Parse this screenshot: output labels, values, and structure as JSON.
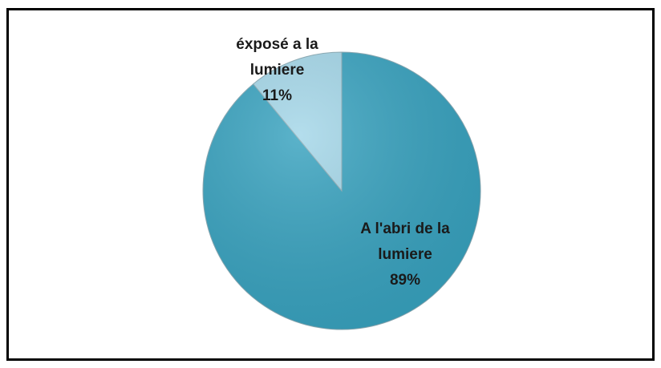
{
  "chart_data": {
    "type": "pie",
    "categories": [
      "A l'abri de la lumiere",
      "éxposé a la lumiere"
    ],
    "values": [
      89,
      11
    ],
    "value_labels": [
      "89%",
      "11%"
    ],
    "colors": [
      "#37a2bf",
      "#a3d6e8"
    ]
  }
}
